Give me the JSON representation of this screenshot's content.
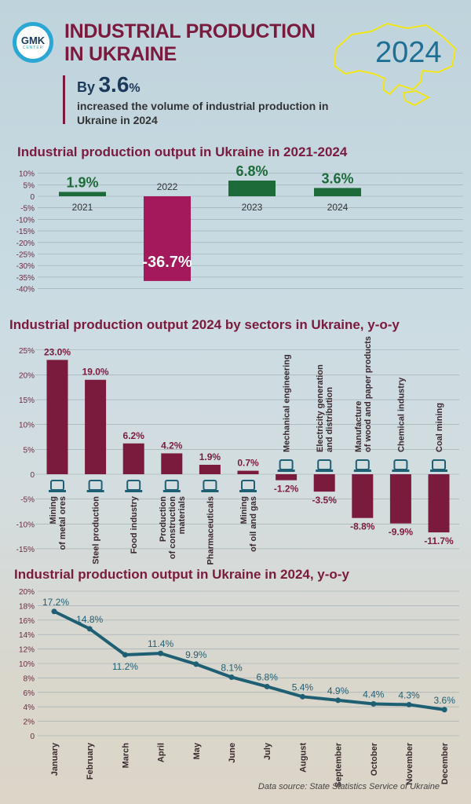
{
  "header": {
    "logo_text": "GMK",
    "logo_subtext": "CENTER",
    "title_line1": "INDUSTRIAL PRODUCTION",
    "title_line2": "IN UKRAINE",
    "highlight_prefix": "By",
    "highlight_value": "3.6",
    "highlight_unit": "%",
    "description": "increased the volume of industrial production in Ukraine in 2024",
    "map_year": "2024"
  },
  "colors": {
    "maroon": "#7a1a3c",
    "green": "#1e6b3a",
    "magenta": "#a3195b",
    "teal": "#1f5f73",
    "map_outline": "#f2e61a"
  },
  "chart_data": [
    {
      "type": "bar",
      "title": "Industrial production output in Ukraine in 2021-2024",
      "categories": [
        "2021",
        "2022",
        "2023",
        "2024"
      ],
      "values": [
        1.9,
        -36.7,
        6.8,
        3.6
      ],
      "data_labels": [
        "1.9%",
        "-36.7%",
        "6.8%",
        "3.6%"
      ],
      "ylim": [
        -40,
        10
      ],
      "yticks": [
        "10%",
        "5%",
        "0",
        "-5%",
        "-10%",
        "-15%",
        "-20%",
        "-25%",
        "-30%",
        "-35%",
        "-40%"
      ],
      "ytick_values": [
        10,
        5,
        0,
        -5,
        -10,
        -15,
        -20,
        -25,
        -30,
        -35,
        -40
      ],
      "grid": true
    },
    {
      "type": "bar",
      "title": "Industrial production output 2024 by sectors in Ukraine, y-o-y",
      "categories": [
        "Mining of metal ores",
        "Steel production",
        "Food industry",
        "Production of construction materials",
        "Pharmaceuticals",
        "Mining of oil and gas",
        "Mechanical engineering",
        "Electricity generation and distribution",
        "Manufacture of wood and paper products",
        "Chemical industry",
        "Coal mining"
      ],
      "category_lines": [
        [
          "Mining",
          "of metal ores"
        ],
        [
          "Steel production"
        ],
        [
          "Food industry"
        ],
        [
          "Production",
          "of construction",
          "materials"
        ],
        [
          "Pharmaceuticals"
        ],
        [
          "Mining",
          "of oil and gas"
        ],
        [
          "Mechanical engineering"
        ],
        [
          "Electricity  generation",
          "and distribution"
        ],
        [
          "Manufacture",
          "of wood and paper products"
        ],
        [
          "Chemical industry"
        ],
        [
          "Coal mining"
        ]
      ],
      "icons": [
        "mining-icon",
        "ladle-icon",
        "plate-icon",
        "bricks-icon",
        "pills-icon",
        "oil-pump-icon",
        "robot-arm-icon",
        "power-tower-icon",
        "paper-roll-icon",
        "flask-icon",
        "coal-cart-icon"
      ],
      "values": [
        23.0,
        19.0,
        6.2,
        4.2,
        1.9,
        0.7,
        -1.2,
        -3.5,
        -8.8,
        -9.9,
        -11.7
      ],
      "data_labels": [
        "23.0%",
        "19.0%",
        "6.2%",
        "4.2%",
        "1.9%",
        "0.7%",
        "-1.2%",
        "-3.5%",
        "-8.8%",
        "-9.9%",
        "-11.7%"
      ],
      "ylim": [
        -15,
        25
      ],
      "yticks": [
        "25%",
        "20%",
        "15%",
        "10%",
        "5%",
        "0",
        "-5%",
        "-10%",
        "-15%"
      ],
      "ytick_values": [
        25,
        20,
        15,
        10,
        5,
        0,
        -5,
        -10,
        -15
      ],
      "grid": true
    },
    {
      "type": "line",
      "title": "Industrial production output in Ukraine in 2024, y-o-y",
      "categories": [
        "January",
        "February",
        "March",
        "April",
        "May",
        "June",
        "July",
        "August",
        "September",
        "October",
        "November",
        "December"
      ],
      "values": [
        17.2,
        14.8,
        11.2,
        11.4,
        9.9,
        8.1,
        6.8,
        5.4,
        4.9,
        4.4,
        4.3,
        3.6
      ],
      "data_labels": [
        "17.2%",
        "14.8%",
        "11.2%",
        "11.4%",
        "9.9%",
        "8.1%",
        "6.8%",
        "5.4%",
        "4.9%",
        "4.4%",
        "4.3%",
        "3.6%"
      ],
      "ylim": [
        0,
        20
      ],
      "yticks": [
        "20%",
        "18%",
        "16%",
        "14%",
        "12%",
        "10%",
        "8%",
        "6%",
        "4%",
        "2%",
        "0"
      ],
      "ytick_values": [
        20,
        18,
        16,
        14,
        12,
        10,
        8,
        6,
        4,
        2,
        0
      ],
      "grid": true
    }
  ],
  "footer": {
    "source": "Data source: State Statistics Service of Ukraine"
  }
}
